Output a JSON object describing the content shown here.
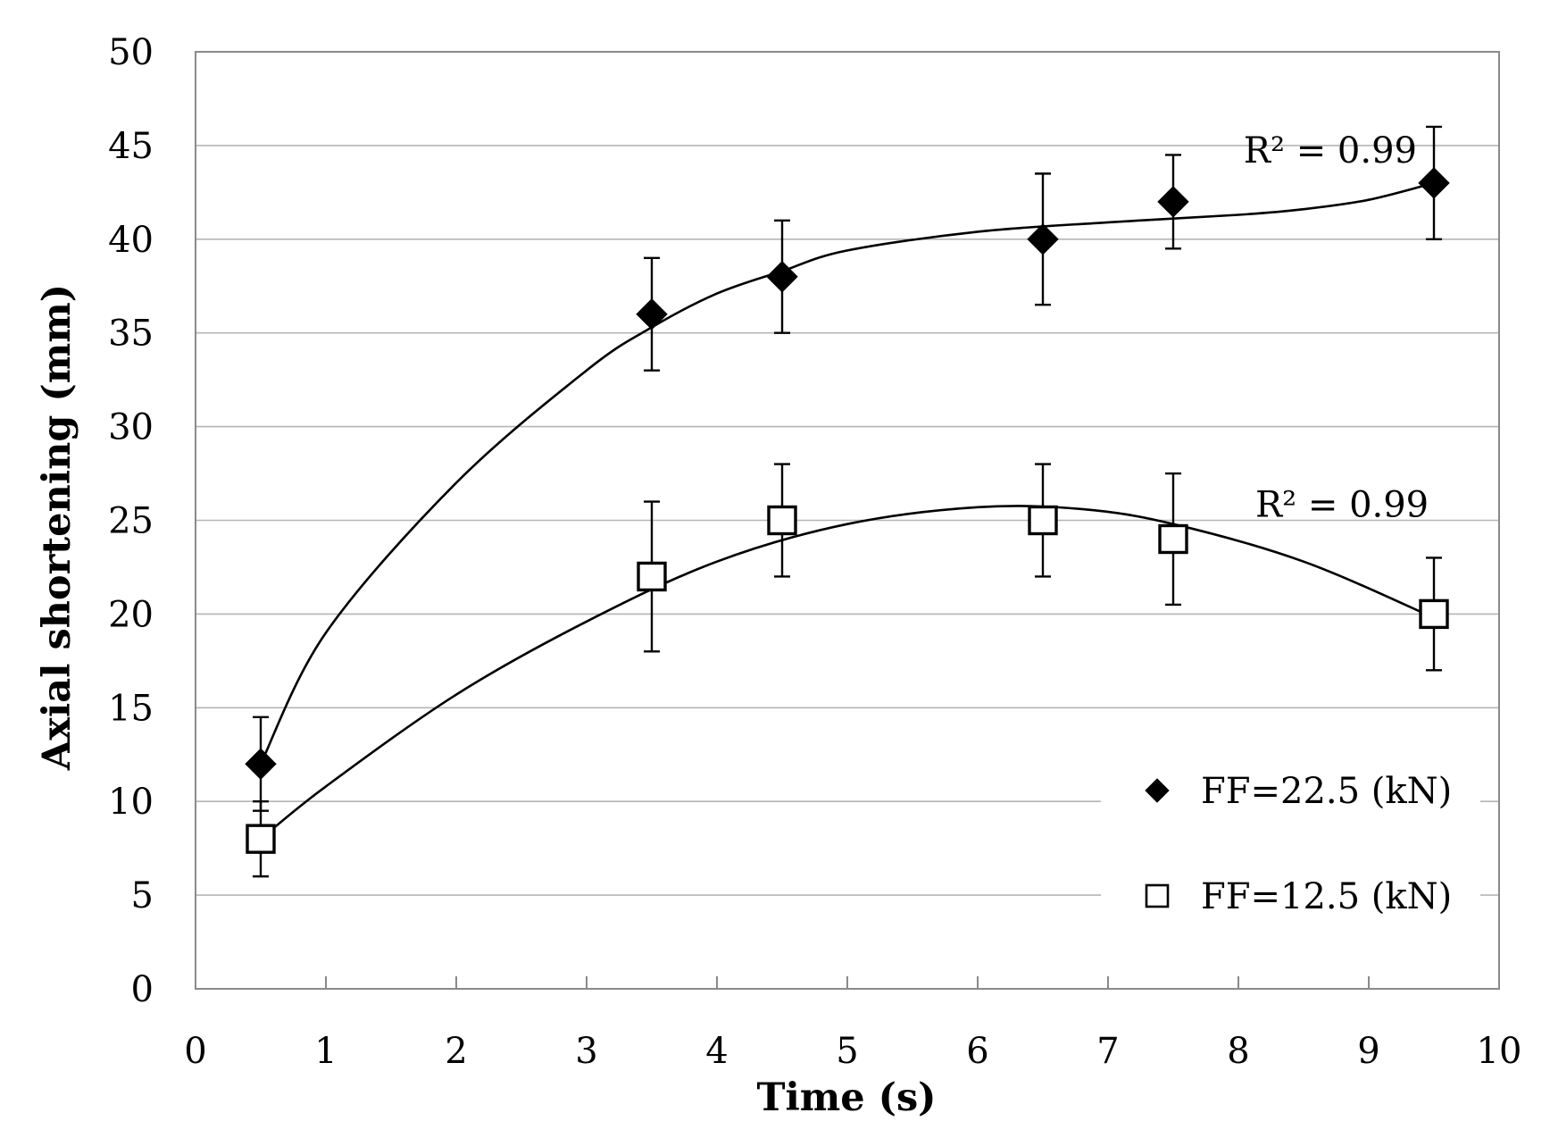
{
  "chart_data": {
    "type": "scatter",
    "xlabel": "Time (s)",
    "ylabel": "Axial shortening (mm)",
    "xlim": [
      0,
      10
    ],
    "ylim": [
      0,
      50
    ],
    "xticks": [
      "0",
      "1",
      "2",
      "3",
      "4",
      "5",
      "6",
      "7",
      "8",
      "9",
      "10"
    ],
    "yticks": [
      "0",
      "5",
      "10",
      "15",
      "20",
      "25",
      "30",
      "35",
      "40",
      "45",
      "50"
    ],
    "grid": "horizontal",
    "legend_position": "bottom-right",
    "series": [
      {
        "name": "FF=22.5 (kN)",
        "marker": "diamond-filled",
        "x": [
          0.5,
          3.5,
          4.5,
          6.5,
          7.5,
          9.5
        ],
        "y": [
          12,
          36,
          38,
          40,
          42,
          43
        ],
        "err_low": [
          9.5,
          33,
          35,
          36.5,
          39.5,
          40
        ],
        "err_high": [
          14.5,
          39,
          41,
          43.5,
          44.5,
          46
        ],
        "trend_curve": [
          [
            0.5,
            12
          ],
          [
            1,
            19
          ],
          [
            2,
            27
          ],
          [
            3,
            33
          ],
          [
            3.5,
            35.3
          ],
          [
            4,
            37.1
          ],
          [
            4.5,
            38.3
          ],
          [
            5,
            39.4
          ],
          [
            6,
            40.4
          ],
          [
            7,
            40.9
          ],
          [
            8,
            41.3
          ],
          [
            8.5,
            41.6
          ],
          [
            9,
            42.1
          ],
          [
            9.5,
            43
          ]
        ],
        "r2_label": "R² = 0.99"
      },
      {
        "name": "FF=12.5 (kN)",
        "marker": "square-open",
        "x": [
          0.5,
          3.5,
          4.5,
          6.5,
          7.5,
          9.5
        ],
        "y": [
          8,
          22,
          25,
          25,
          24,
          20
        ],
        "err_low": [
          6,
          18,
          22,
          22,
          20.5,
          17
        ],
        "err_high": [
          10,
          26,
          28,
          28,
          27.5,
          23
        ],
        "trend_curve": [
          [
            0.5,
            8
          ],
          [
            1,
            10.8
          ],
          [
            2,
            15.7
          ],
          [
            3,
            19.6
          ],
          [
            4,
            22.8
          ],
          [
            5,
            24.8
          ],
          [
            6,
            25.7
          ],
          [
            6.8,
            25.6
          ],
          [
            7.5,
            24.8
          ],
          [
            8.5,
            22.8
          ],
          [
            9.5,
            19.8
          ]
        ],
        "r2_label": "R² = 0.99"
      }
    ]
  }
}
